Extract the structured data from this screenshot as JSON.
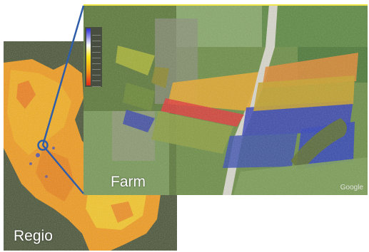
{
  "panels": {
    "regional": {
      "label": "Regio"
    },
    "farm": {
      "label": "Farm",
      "attribution": "Google"
    }
  },
  "colors": {
    "frame_border": "#f2e64a",
    "connector": "#2f5da8",
    "legend_scale": [
      "#2a2ad8",
      "#ffffff",
      "#f8e51a",
      "#f39a17",
      "#e2271c"
    ]
  },
  "icons": {
    "location_marker": "circle-marker-icon"
  }
}
